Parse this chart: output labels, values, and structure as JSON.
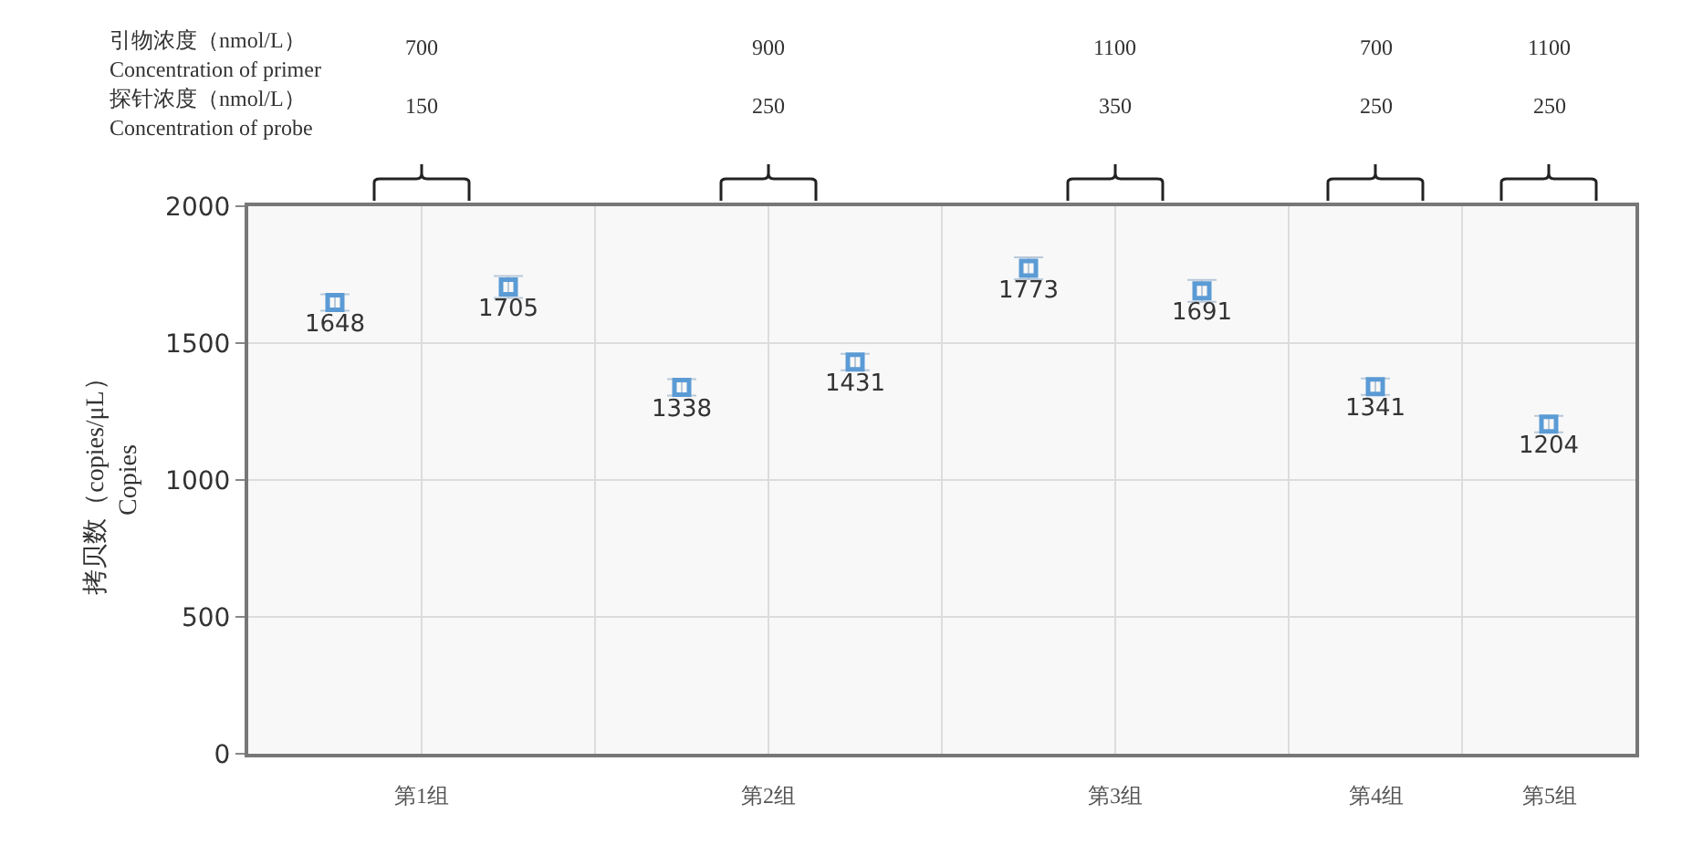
{
  "chart_data": {
    "type": "scatter",
    "ylabel": "拷贝数（copies/μL）\nCopies",
    "categories": [
      null,
      null,
      null,
      null,
      null,
      null,
      null,
      null
    ],
    "values": [
      1648,
      1705,
      1338,
      1431,
      1773,
      1691,
      1341,
      1204
    ],
    "errors": [
      30,
      40,
      30,
      30,
      40,
      40,
      30,
      30
    ],
    "color": "#5b9bd5",
    "marker": "square",
    "data_labels": true,
    "ylim": [
      0,
      2000
    ],
    "yticks": [
      0,
      500,
      1000,
      1500,
      2000
    ],
    "grid": true,
    "annotations": [
      "引物浓度（nmol/L）",
      "Concentration of primer",
      "探针浓度（nmol/L）",
      "Concentration of probe",
      "700",
      "900",
      "1100",
      "700",
      "1100",
      "150",
      "250",
      "350",
      "250",
      "250",
      "第1组",
      "第2组",
      "第3组",
      "第4组",
      "第5组"
    ]
  }
}
